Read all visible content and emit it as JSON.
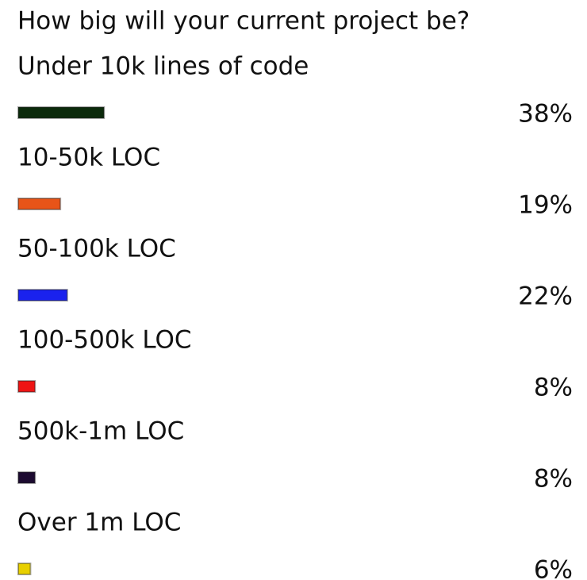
{
  "chart_data": {
    "type": "bar",
    "orientation": "horizontal",
    "title": "How big will your current project be?",
    "categories": [
      "Under 10k lines of code",
      "10-50k LOC",
      "50-100k LOC",
      "100-500k LOC",
      "500k-1m LOC",
      "Over 1m LOC"
    ],
    "values": [
      38,
      19,
      22,
      8,
      8,
      6
    ],
    "value_labels": [
      "38%",
      "19%",
      "22%",
      "8%",
      "8%",
      "6%"
    ],
    "colors": [
      "#0b2a0b",
      "#e85418",
      "#1a22ee",
      "#ee1414",
      "#1c0a30",
      "#e8d000"
    ]
  }
}
